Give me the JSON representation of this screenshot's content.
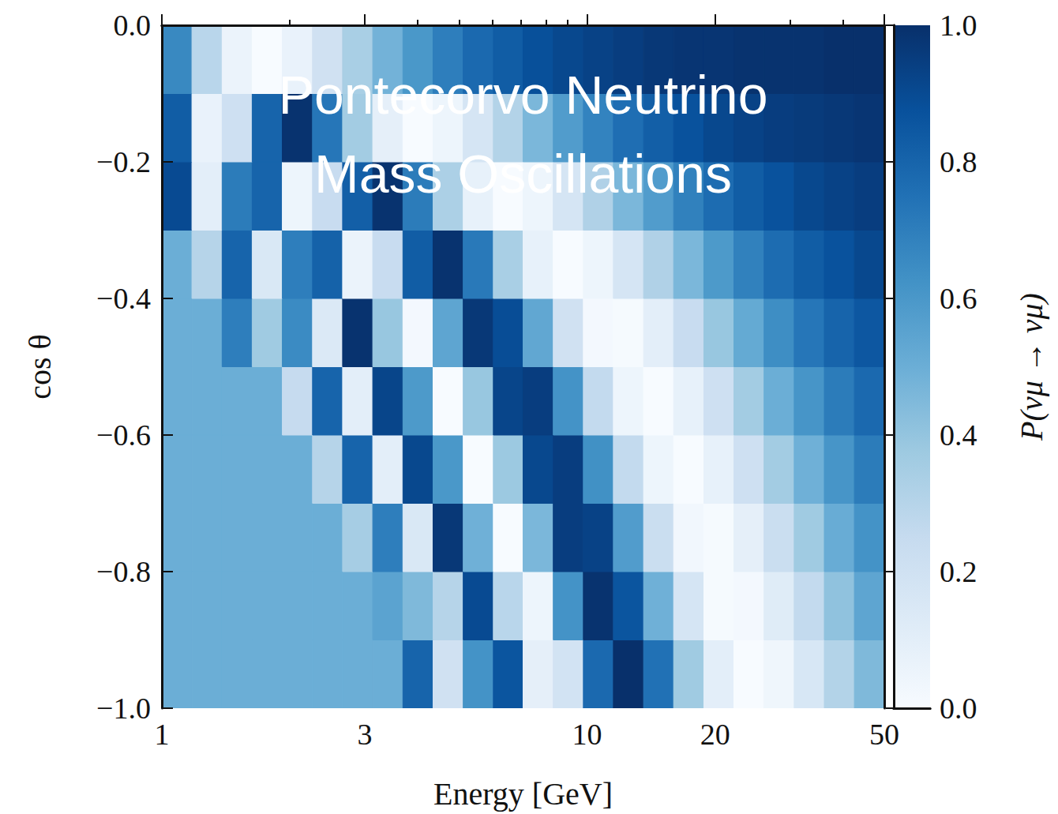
{
  "chart_data": {
    "type": "heatmap",
    "annotation": "Pontecorvo Neutrino\nMass Oscillations",
    "x_label": "Energy [GeV]",
    "y_label": "cos θ",
    "log": "x",
    "xlim": [
      1,
      50
    ],
    "xticks": [
      1,
      3,
      10,
      20,
      50
    ],
    "xminorticks": [
      2,
      4,
      5,
      6,
      7,
      8,
      9,
      30,
      40
    ],
    "ylim": [
      -1.0,
      0.0
    ],
    "yticks": [
      {
        "value": -1.0,
        "label": "−1.0"
      },
      {
        "value": -0.8,
        "label": "−0.8"
      },
      {
        "value": -0.6,
        "label": "−0.6"
      },
      {
        "value": -0.4,
        "label": "−0.4"
      },
      {
        "value": -0.2,
        "label": "−0.2"
      },
      {
        "value": 0.0,
        "label": "0.0"
      }
    ],
    "x_edges": [
      1.0,
      1.177,
      1.386,
      1.631,
      1.92,
      2.261,
      2.661,
      3.133,
      3.689,
      4.343,
      5.113,
      6.019,
      7.071,
      8.326,
      9.8,
      11.53,
      13.58,
      15.98,
      18.82,
      22.15,
      26.07,
      30.69,
      36.13,
      42.52,
      50.0
    ],
    "y_edges": [
      -1.0,
      -0.9,
      -0.8,
      -0.7,
      -0.6,
      -0.5,
      -0.4,
      -0.3,
      -0.2,
      -0.1,
      0.0
    ],
    "cells": [
      [
        0.5,
        0.5,
        0.5,
        0.5,
        0.5,
        0.5,
        0.5,
        0.5,
        0.8,
        0.2,
        0.62,
        0.86,
        0.09,
        0.19,
        0.78,
        1.0,
        0.75,
        0.37,
        0.1,
        0.0,
        0.04,
        0.16,
        0.31,
        0.45
      ],
      [
        0.5,
        0.5,
        0.5,
        0.5,
        0.5,
        0.5,
        0.5,
        0.55,
        0.45,
        0.3,
        0.9,
        0.29,
        0.05,
        0.62,
        0.99,
        0.86,
        0.49,
        0.17,
        0.01,
        0.02,
        0.12,
        0.26,
        0.41,
        0.54
      ],
      [
        0.5,
        0.5,
        0.5,
        0.5,
        0.5,
        0.5,
        0.35,
        0.7,
        0.15,
        0.97,
        0.49,
        0.0,
        0.46,
        0.95,
        0.93,
        0.58,
        0.23,
        0.03,
        0.01,
        0.09,
        0.23,
        0.37,
        0.51,
        0.62
      ],
      [
        0.5,
        0.5,
        0.5,
        0.5,
        0.5,
        0.3,
        0.8,
        0.1,
        0.91,
        0.6,
        0.0,
        0.38,
        0.91,
        0.95,
        0.63,
        0.26,
        0.05,
        0.0,
        0.08,
        0.21,
        0.36,
        0.49,
        0.61,
        0.71
      ],
      [
        0.5,
        0.5,
        0.5,
        0.5,
        0.25,
        0.8,
        0.1,
        0.92,
        0.59,
        0.0,
        0.39,
        0.92,
        0.95,
        0.62,
        0.26,
        0.05,
        0.0,
        0.08,
        0.21,
        0.36,
        0.5,
        0.61,
        0.71,
        0.78
      ],
      [
        0.5,
        0.5,
        0.7,
        0.37,
        0.65,
        0.14,
        0.99,
        0.39,
        0.02,
        0.54,
        0.97,
        0.89,
        0.53,
        0.2,
        0.02,
        0.01,
        0.1,
        0.24,
        0.39,
        0.52,
        0.64,
        0.73,
        0.8,
        0.85
      ],
      [
        0.5,
        0.3,
        0.8,
        0.15,
        0.7,
        0.81,
        0.06,
        0.24,
        0.83,
        0.99,
        0.72,
        0.34,
        0.08,
        0.0,
        0.05,
        0.17,
        0.32,
        0.46,
        0.59,
        0.69,
        0.77,
        0.83,
        0.87,
        0.91
      ],
      [
        0.9,
        0.1,
        0.71,
        0.8,
        0.05,
        0.24,
        0.82,
        0.99,
        0.71,
        0.33,
        0.08,
        0.0,
        0.05,
        0.17,
        0.32,
        0.46,
        0.58,
        0.69,
        0.77,
        0.83,
        0.87,
        0.91,
        0.93,
        0.95
      ],
      [
        0.83,
        0.07,
        0.21,
        0.8,
        0.99,
        0.73,
        0.36,
        0.09,
        0.0,
        0.05,
        0.17,
        0.31,
        0.46,
        0.58,
        0.68,
        0.76,
        0.82,
        0.87,
        0.91,
        0.93,
        0.95,
        0.96,
        0.97,
        0.98
      ],
      [
        0.66,
        0.29,
        0.06,
        0.0,
        0.07,
        0.2,
        0.34,
        0.48,
        0.6,
        0.7,
        0.78,
        0.83,
        0.88,
        0.91,
        0.93,
        0.95,
        0.97,
        0.98,
        0.98,
        0.99,
        0.99,
        0.99,
        1.0,
        1.0
      ]
    ],
    "colorbar": {
      "label": "P(νμ → νμ)",
      "lim": [
        0.0,
        1.0
      ],
      "ticks": [
        {
          "value": 0.0,
          "label": "0.0"
        },
        {
          "value": 0.2,
          "label": "0.2"
        },
        {
          "value": 0.4,
          "label": "0.4"
        },
        {
          "value": 0.6,
          "label": "0.6"
        },
        {
          "value": 0.8,
          "label": "0.8"
        },
        {
          "value": 1.0,
          "label": "1.0"
        }
      ]
    }
  }
}
